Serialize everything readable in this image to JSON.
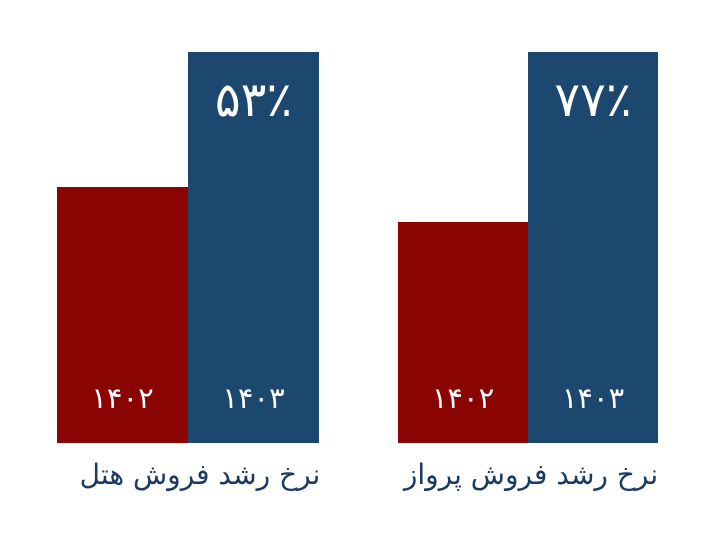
{
  "background": "#FFFFFF",
  "colors": {
    "bar_prev_year": "#8B0404",
    "bar_curr_year": "#1C476F",
    "caption_text": "#1B3A63",
    "bar_label_text": "#FFFFFF"
  },
  "chart_data": [
    {
      "type": "bar",
      "title": "نرخ رشد فروش هتل",
      "categories": [
        "۱۴۰۲",
        "۱۴۰۳"
      ],
      "values": [
        100,
        153
      ],
      "growth_label": "۵۳٪",
      "bar_colors": [
        "#8B0404",
        "#1C476F"
      ],
      "grid": false,
      "legend_position": "none",
      "axis_visible": false,
      "value_label_position": "inside-top-of-tallest-bar",
      "category_label_position": "inside-bottom-of-bars"
    },
    {
      "type": "bar",
      "title": "نرخ رشد فروش پرواز",
      "categories": [
        "۱۴۰۲",
        "۱۴۰۳"
      ],
      "values": [
        100,
        177
      ],
      "growth_label": "۷۷٪",
      "bar_colors": [
        "#8B0404",
        "#1C476F"
      ],
      "grid": false,
      "legend_position": "none",
      "axis_visible": false,
      "value_label_position": "inside-top-of-tallest-bar",
      "category_label_position": "inside-bottom-of-bars"
    }
  ]
}
